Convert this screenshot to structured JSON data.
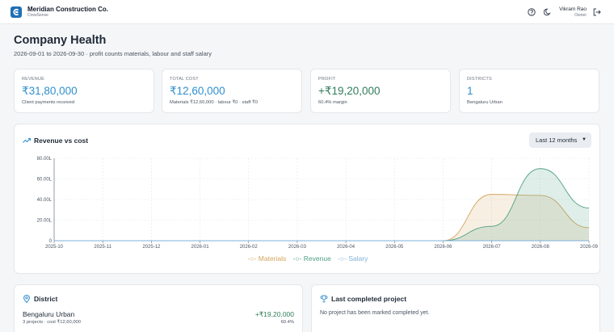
{
  "header": {
    "company": "Meridian Construction Co.",
    "app": "CrewSense",
    "user_name": "Vikram Rao",
    "user_role": "Owner"
  },
  "page": {
    "title": "Company Health",
    "subtitle": "2026-09-01 to 2026-09-30 · profit counts materials, labour and staff salary"
  },
  "kpis": [
    {
      "label": "REVENUE",
      "value": "₹31,80,000",
      "note": "Client payments received",
      "color": "#2f8fce"
    },
    {
      "label": "TOTAL COST",
      "value": "₹12,60,000",
      "note": "Materials ₹12,60,000 · labour ₹0 · staff ₹0",
      "color": "#2f8fce"
    },
    {
      "label": "PROFIT",
      "value": "+₹19,20,000",
      "note": "60.4% margin",
      "color": "#2f7d5b"
    },
    {
      "label": "DISTRICTS",
      "value": "1",
      "note": "Bengaluru Urban",
      "color": "#2f8fce"
    }
  ],
  "chart_section": {
    "title": "Revenue vs cost",
    "range": "Last 12 months"
  },
  "chart_data": {
    "type": "area",
    "x": [
      "2025-10",
      "2025-11",
      "2025-12",
      "2026-01",
      "2026-02",
      "2026-03",
      "2026-04",
      "2026-05",
      "2026-06",
      "2026-07",
      "2026-08",
      "2026-09"
    ],
    "yticks": [
      "0",
      "20.00L",
      "40.00L",
      "60.00L",
      "80.00L"
    ],
    "ylim": [
      0,
      80
    ],
    "series": [
      {
        "name": "Materials",
        "color": "#d4a55f",
        "values": [
          0,
          0,
          0,
          0,
          0,
          0,
          0,
          0,
          0,
          45,
          44,
          12.6
        ]
      },
      {
        "name": "Revenue",
        "color": "#4ea085",
        "values": [
          0,
          0,
          0,
          0,
          0,
          0,
          0,
          0,
          0,
          14,
          70,
          31.8
        ]
      },
      {
        "name": "Salary",
        "color": "#7fb0d9",
        "values": [
          0,
          0,
          0,
          0,
          0,
          0,
          0,
          0,
          0,
          0,
          0,
          0
        ]
      }
    ]
  },
  "district": {
    "title": "District",
    "name": "Bengaluru Urban",
    "meta": "3 projects · cost ₹12,60,000",
    "profit": "+₹19,20,000",
    "margin": "60.4%"
  },
  "last_project": {
    "title": "Last completed project",
    "empty": "No project has been marked completed yet."
  }
}
